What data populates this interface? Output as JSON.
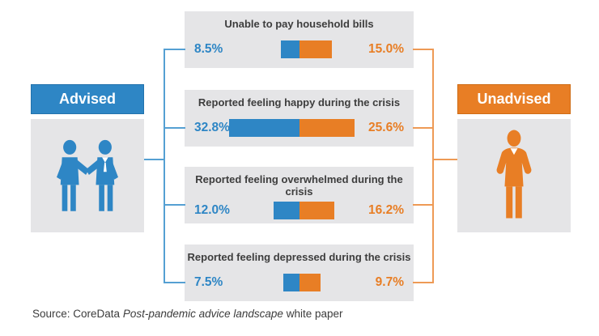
{
  "colors": {
    "advised_blue": "#2E86C5",
    "unadvised_orange": "#E87E25",
    "blue_connector": "#55A0D3",
    "orange_connector": "#EE9A55",
    "card_background": "#E5E5E7",
    "title_text": "#3D3D3D"
  },
  "left_panel": {
    "label": "Advised",
    "icon": "handshake-people-icon"
  },
  "right_panel": {
    "label": "Unadvised",
    "icon": "businessman-icon"
  },
  "source": {
    "prefix": "Source: CoreData ",
    "italic": "Post-pandemic advice landscape",
    "suffix": " white paper"
  },
  "chart_data": {
    "type": "bar",
    "title": "",
    "legend_position": "sides",
    "categories": [
      "Unable to pay household bills",
      "Reported feeling happy during the crisis",
      "Reported feeling overwhelmed during the crisis",
      "Reported feeling depressed during the crisis"
    ],
    "series": [
      {
        "name": "Advised",
        "color": "#2E86C5",
        "values": [
          8.5,
          32.8,
          12.0,
          7.5
        ]
      },
      {
        "name": "Unadvised",
        "color": "#E87E25",
        "values": [
          15.0,
          25.6,
          16.2,
          9.7
        ]
      }
    ],
    "cards": [
      {
        "title": "Unable to pay household bills",
        "advised_label": "8.5%",
        "advised_value": 8.5,
        "unadvised_label": "15.0%",
        "unadvised_value": 15.0
      },
      {
        "title": "Reported feeling happy during the crisis",
        "advised_label": "32.8%",
        "advised_value": 32.8,
        "unadvised_label": "25.6%",
        "unadvised_value": 25.6
      },
      {
        "title": "Reported feeling overwhelmed during the crisis",
        "advised_label": "12.0%",
        "advised_value": 12.0,
        "unadvised_label": "16.2%",
        "unadvised_value": 16.2
      },
      {
        "title": "Reported feeling depressed during the crisis",
        "advised_label": "7.5%",
        "advised_value": 7.5,
        "unadvised_label": "9.7%",
        "unadvised_value": 9.7
      }
    ]
  }
}
